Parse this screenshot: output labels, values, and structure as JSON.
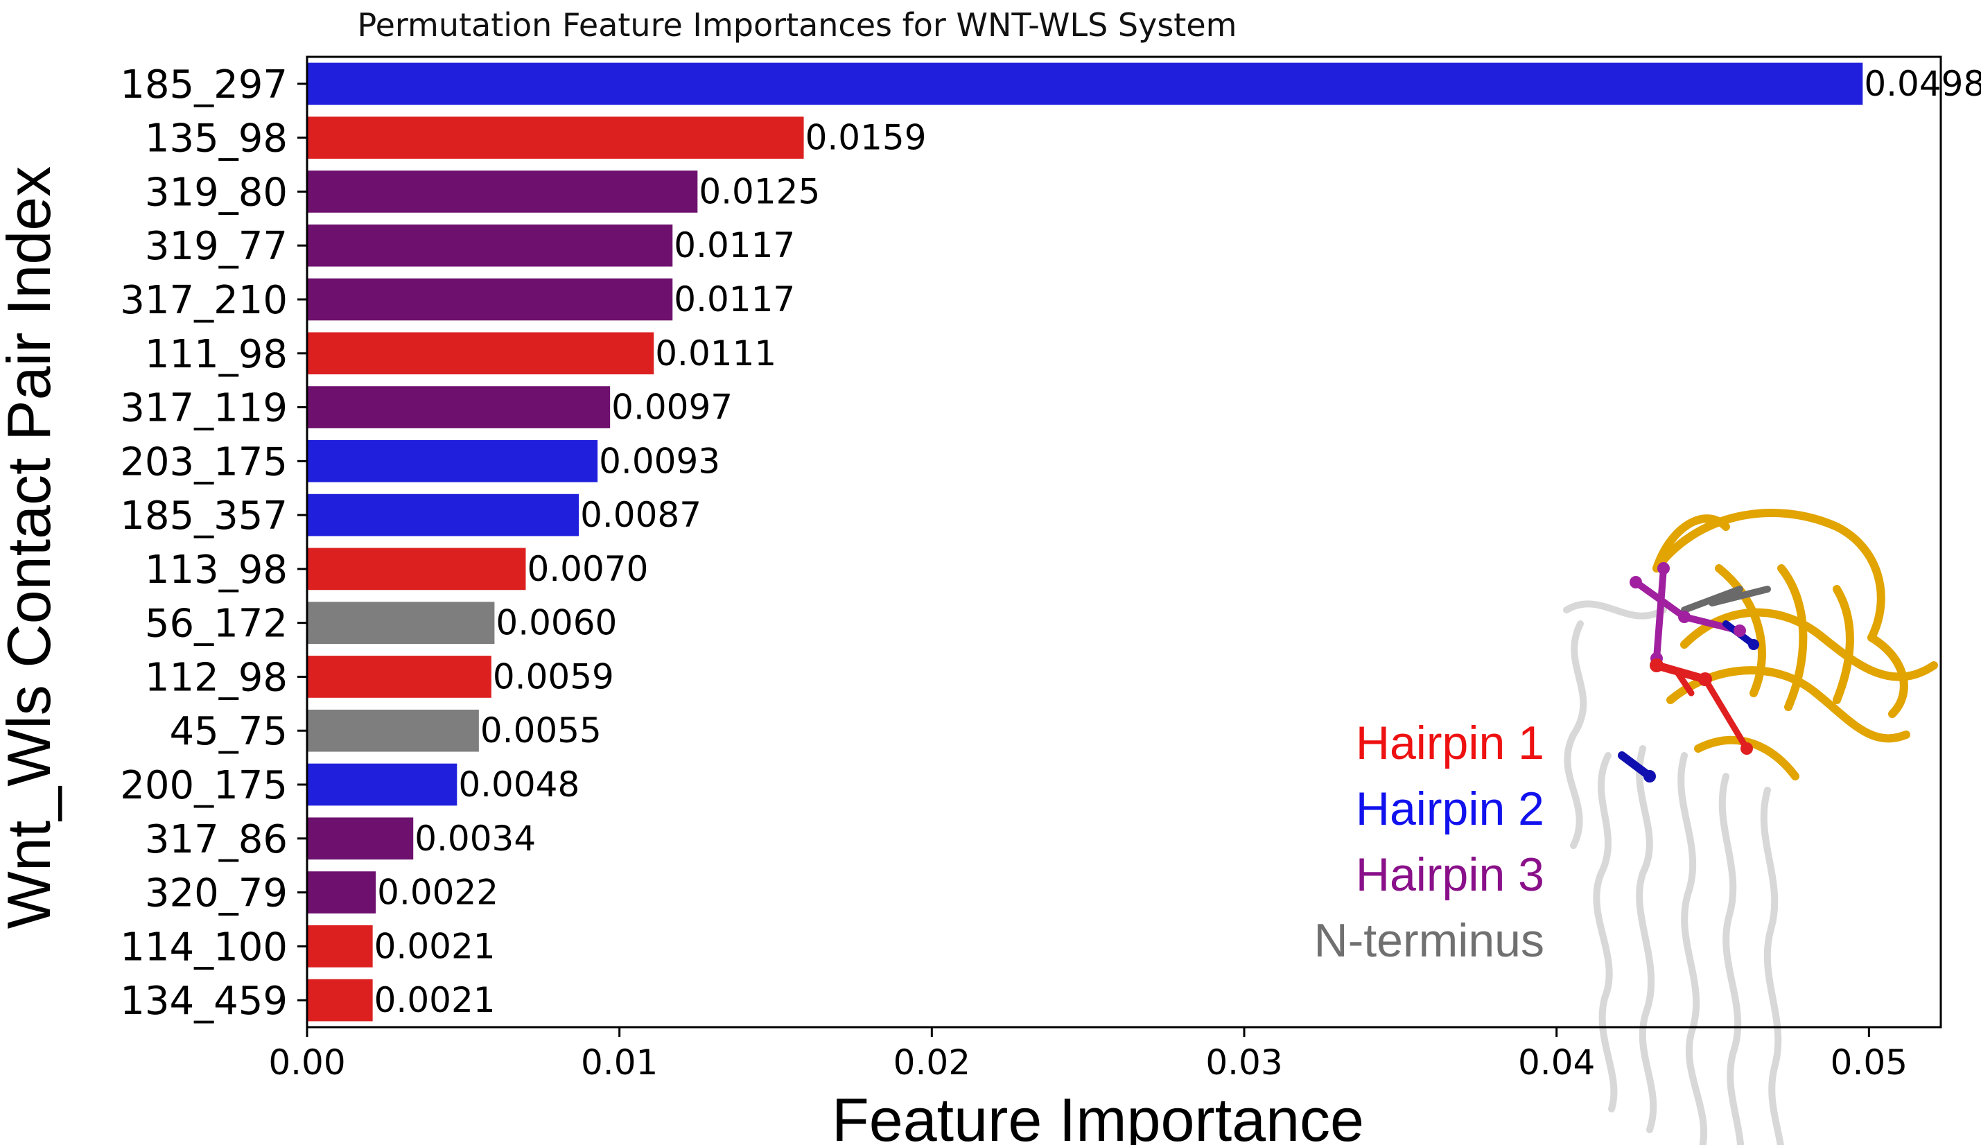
{
  "chart_data": {
    "type": "bar",
    "orientation": "horizontal",
    "title": "Permutation Feature Importances for WNT-WLS System",
    "xlabel": "Feature Importance",
    "ylabel": "Wnt_Wls Contact Pair Index",
    "xlim": [
      0,
      0.0523
    ],
    "xticks": [
      "0.00",
      "0.01",
      "0.02",
      "0.03",
      "0.04",
      "0.05"
    ],
    "xtick_values": [
      0,
      0.01,
      0.02,
      0.03,
      0.04,
      0.05
    ],
    "grid": false,
    "categories": [
      "185_297",
      "135_98",
      "319_80",
      "319_77",
      "317_210",
      "111_98",
      "317_119",
      "203_175",
      "185_357",
      "113_98",
      "56_172",
      "112_98",
      "45_75",
      "200_175",
      "317_86",
      "320_79",
      "114_100",
      "134_459"
    ],
    "values": [
      0.0498,
      0.0159,
      0.0125,
      0.0117,
      0.0117,
      0.0111,
      0.0097,
      0.0093,
      0.0087,
      0.007,
      0.006,
      0.0059,
      0.0055,
      0.0048,
      0.0034,
      0.0022,
      0.0021,
      0.0021
    ],
    "value_labels": [
      "0.0498",
      "0.0159",
      "0.0125",
      "0.0117",
      "0.0117",
      "0.0111",
      "0.0097",
      "0.0093",
      "0.0087",
      "0.0070",
      "0.0060",
      "0.0059",
      "0.0055",
      "0.0048",
      "0.0034",
      "0.0022",
      "0.0021",
      "0.0021"
    ],
    "groups": [
      "Hairpin 2",
      "Hairpin 1",
      "Hairpin 3",
      "Hairpin 3",
      "Hairpin 3",
      "Hairpin 1",
      "Hairpin 3",
      "Hairpin 2",
      "Hairpin 2",
      "Hairpin 1",
      "N-terminus",
      "Hairpin 1",
      "N-terminus",
      "Hairpin 2",
      "Hairpin 3",
      "Hairpin 3",
      "Hairpin 1",
      "Hairpin 1"
    ],
    "legend": {
      "placement": "bottom-right",
      "entries": [
        {
          "label": "Hairpin 1",
          "color": "#dc2020"
        },
        {
          "label": "Hairpin 2",
          "color": "#2020dc"
        },
        {
          "label": "Hairpin 3",
          "color": "#6e106e"
        },
        {
          "label": "N-terminus",
          "color": "#7e7e7e"
        }
      ],
      "text_colors": {
        "Hairpin 1": "#ee1111",
        "Hairpin 2": "#1111ee",
        "Hairpin 3": "#8a108a",
        "N-terminus": "#707070"
      }
    },
    "inset": "protein-structure-image"
  }
}
